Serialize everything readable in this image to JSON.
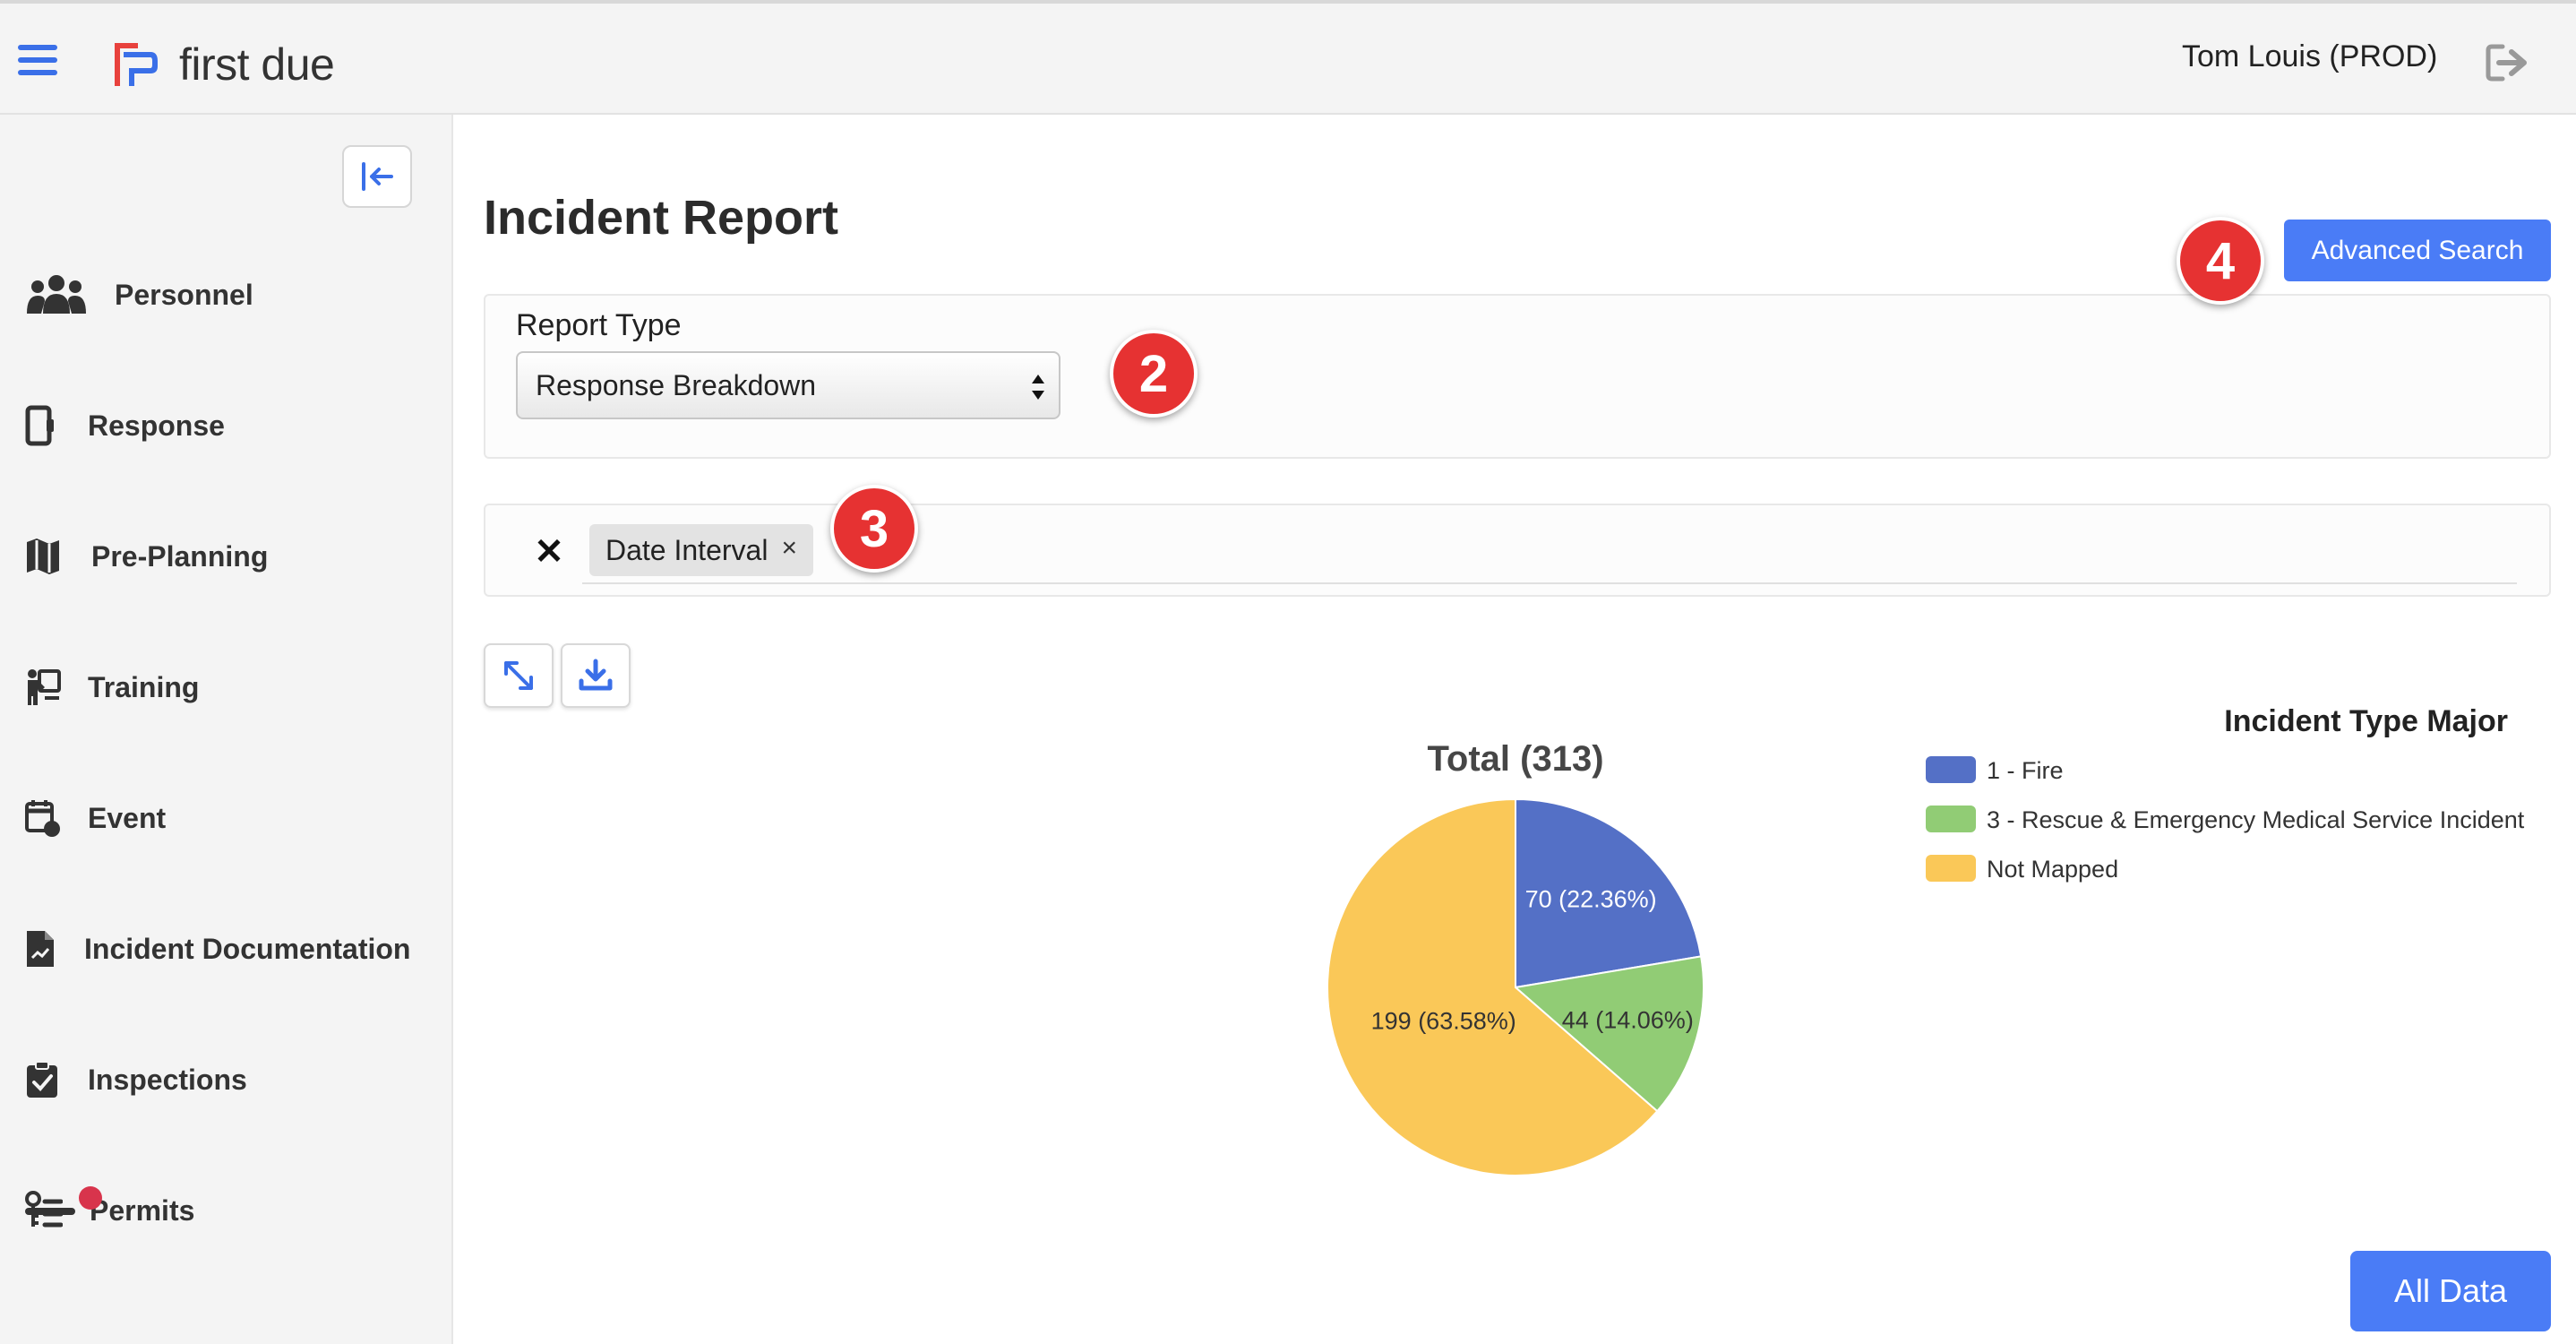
{
  "app": {
    "logo_text": "first due",
    "user": "Tom Louis (PROD)"
  },
  "sidebar": {
    "items": [
      {
        "label": "Personnel",
        "icon": "users-icon"
      },
      {
        "label": "Response",
        "icon": "tablet-icon"
      },
      {
        "label": "Pre-Planning",
        "icon": "map-icon"
      },
      {
        "label": "Training",
        "icon": "presentation-icon"
      },
      {
        "label": "Event",
        "icon": "calendar-icon"
      },
      {
        "label": "Incident Documentation",
        "icon": "document-chart-icon"
      },
      {
        "label": "Inspections",
        "icon": "clipboard-check-icon"
      },
      {
        "label": "Permits",
        "icon": "key-list-icon"
      }
    ]
  },
  "main": {
    "title": "Incident Report",
    "advanced_search_label": "Advanced Search",
    "report_type_label": "Report Type",
    "report_type_value": "Response Breakdown",
    "filter_chip": "Date Interval",
    "chip_close": "×",
    "clear_filters": "✕",
    "all_data_label": "All Data"
  },
  "badges": {
    "b2": "2",
    "b3": "3",
    "b4": "4"
  },
  "colors": {
    "fire": "#5470c6",
    "rescue": "#91cc75",
    "not_mapped": "#fac858",
    "accent": "#4a7cf6",
    "badge": "#e63232"
  },
  "chart_data": {
    "type": "pie",
    "title": "Total (313)",
    "legend_title": "Incident Type Major",
    "legend_position": "right",
    "slices": [
      {
        "name": "1 - Fire",
        "value": 70,
        "label": "70 (22.36%)"
      },
      {
        "name": "3 - Rescue & Emergency Medical Service Incident",
        "value": 44,
        "label": "44 (14.06%)"
      },
      {
        "name": "Not Mapped",
        "value": 199,
        "label": "199 (63.58%)"
      }
    ]
  }
}
